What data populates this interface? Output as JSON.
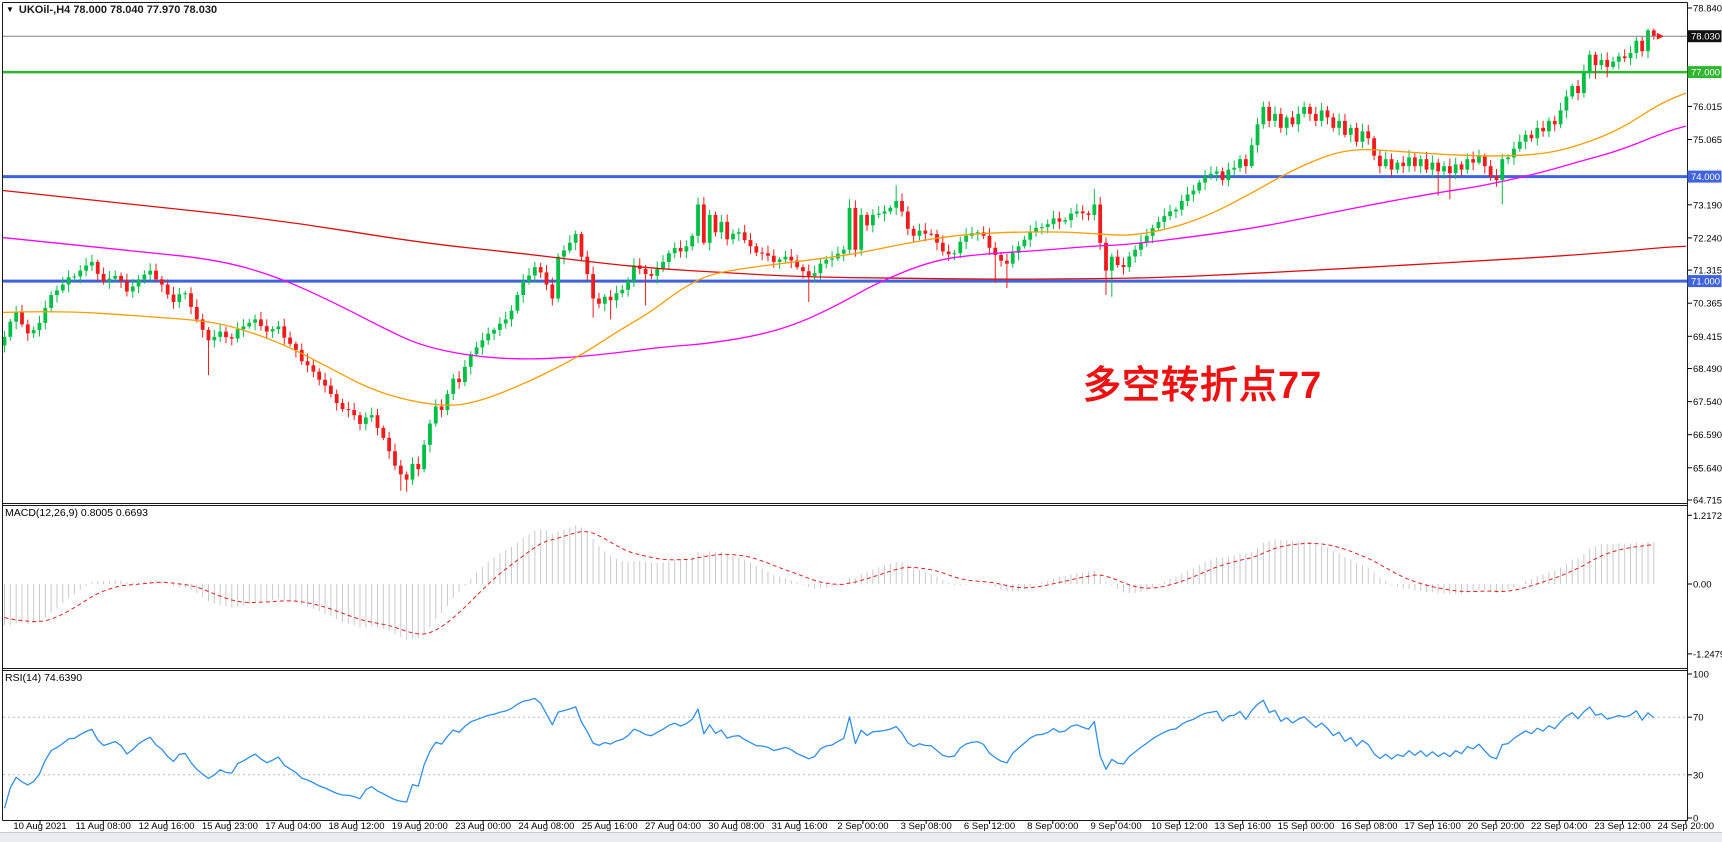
{
  "window": {
    "title": "UKOil-,H4  78.000 78.040 77.970 78.030",
    "dropdown_icon": "▼"
  },
  "annotation": {
    "text": "多空转折点77"
  },
  "panels": {
    "macd": {
      "label": "MACD(12,26,9) 0.8005 0.6693"
    },
    "rsi": {
      "label": "RSI(14) 74.6390"
    }
  },
  "colors": {
    "bull": "#00bf45",
    "bear": "#f21b1b",
    "ma_fast": "#ff9c00",
    "ma_mid": "#ff00ff",
    "ma_slow": "#dd0d0d",
    "macd_hist": "#c9c9c9",
    "macd_signal": "#e02020",
    "rsi_line": "#2f8fe8",
    "level_green": "#2fb52f",
    "level_blue": "#3f63dd",
    "current_line": "#808080",
    "box_black": "#111111",
    "border": "#1a1a1a",
    "dashed_level": "#bbbbbb",
    "bottom_strip": "#e9edf2"
  },
  "price_axis": {
    "labels": [
      {
        "t": "78.840",
        "p": 78.84
      },
      {
        "t": "76.015",
        "p": 76.015
      },
      {
        "t": "75.065",
        "p": 75.065
      },
      {
        "t": "73.190",
        "p": 73.19
      },
      {
        "t": "72.240",
        "p": 72.24
      },
      {
        "t": "71.315",
        "p": 71.315
      },
      {
        "t": "70.365",
        "p": 70.365
      },
      {
        "t": "69.415",
        "p": 69.415
      },
      {
        "t": "68.490",
        "p": 68.49
      },
      {
        "t": "67.540",
        "p": 67.54
      },
      {
        "t": "66.590",
        "p": 66.59
      },
      {
        "t": "65.640",
        "p": 65.64
      },
      {
        "t": "64.715",
        "p": 64.715
      }
    ],
    "boxes": [
      {
        "t": "78.030",
        "p": 78.03,
        "bg": "box_black"
      },
      {
        "t": "77.000",
        "p": 77.0,
        "bg": "level_green"
      },
      {
        "t": "74.000",
        "p": 74.0,
        "bg": "level_blue"
      },
      {
        "t": "71.000",
        "p": 71.0,
        "bg": "level_blue"
      }
    ]
  },
  "time_axis": {
    "labels": [
      "10 Aug 2021",
      "11 Aug 08:00",
      "12 Aug 16:00",
      "15 Aug 23:00",
      "17 Aug 04:00",
      "18 Aug 12:00",
      "19 Aug 20:00",
      "23 Aug 00:00",
      "24 Aug 08:00",
      "25 Aug 16:00",
      "27 Aug 04:00",
      "30 Aug 08:00",
      "31 Aug 16:00",
      "2 Sep 00:00",
      "3 Sep 08:00",
      "6 Sep 12:00",
      "8 Sep 00:00",
      "9 Sep 04:00",
      "10 Sep 12:00",
      "13 Sep 16:00",
      "15 Sep 00:00",
      "16 Sep 08:00",
      "17 Sep 16:00",
      "20 Sep 20:00",
      "22 Sep 04:00",
      "23 Sep 12:00",
      "24 Sep 20:00"
    ]
  },
  "chart_data": {
    "type": "candlestick",
    "symbol": "UKOil-",
    "timeframe": "H4",
    "current_ohlc": {
      "open": "78.000",
      "high": "78.040",
      "low": "77.970",
      "close": "78.030"
    },
    "y_axis": {
      "top_price": 78.84,
      "bottom_price": 64.715
    },
    "hlines": [
      {
        "price": 78.03,
        "color_key": "current_line",
        "w": 1
      },
      {
        "price": 77.0,
        "color_key": "level_green",
        "w": 2.5
      },
      {
        "price": 74.0,
        "color_key": "level_blue",
        "w": 3
      },
      {
        "price": 71.0,
        "color_key": "level_blue",
        "w": 3
      }
    ],
    "warmup_closes": [
      73.0,
      72.9,
      72.95,
      72.7,
      72.6,
      72.65,
      72.4,
      72.2,
      72.25,
      72.0,
      71.8,
      71.85,
      71.6,
      71.4,
      71.45,
      71.2,
      71.0,
      71.05,
      70.8,
      70.6,
      70.65,
      70.4,
      70.2,
      70.1,
      69.8
    ],
    "close_waypoints": [
      [
        0,
        69.4
      ],
      [
        2,
        70.1
      ],
      [
        4,
        69.5
      ],
      [
        6,
        69.8
      ],
      [
        8,
        70.6
      ],
      [
        10,
        70.9
      ],
      [
        13,
        71.3
      ],
      [
        15,
        71.55
      ],
      [
        17,
        71.0
      ],
      [
        19,
        71.15
      ],
      [
        21,
        70.7
      ],
      [
        23,
        71.05
      ],
      [
        25,
        71.3
      ],
      [
        27,
        70.9
      ],
      [
        29,
        70.4
      ],
      [
        31,
        70.65
      ],
      [
        33,
        69.9
      ],
      [
        35,
        69.3
      ],
      [
        37,
        69.55
      ],
      [
        39,
        69.35
      ],
      [
        41,
        69.7
      ],
      [
        43,
        69.9
      ],
      [
        45,
        69.55
      ],
      [
        47,
        69.7
      ],
      [
        49,
        69.2
      ],
      [
        51,
        68.7
      ],
      [
        53,
        68.4
      ],
      [
        55,
        68.0
      ],
      [
        57,
        67.5
      ],
      [
        59,
        67.3
      ],
      [
        61,
        66.9
      ],
      [
        63,
        67.15
      ],
      [
        65,
        66.5
      ],
      [
        67,
        65.7
      ],
      [
        68,
        65.45
      ],
      [
        69,
        65.3
      ],
      [
        70,
        65.75
      ],
      [
        71,
        65.6
      ],
      [
        72,
        66.3
      ],
      [
        74,
        67.4
      ],
      [
        75,
        67.3
      ],
      [
        77,
        68.2
      ],
      [
        78,
        68.1
      ],
      [
        80,
        68.9
      ],
      [
        82,
        69.3
      ],
      [
        84,
        69.6
      ],
      [
        86,
        69.9
      ],
      [
        88,
        70.6
      ],
      [
        89,
        71.0
      ],
      [
        91,
        71.4
      ],
      [
        93,
        70.9
      ],
      [
        94,
        70.5
      ],
      [
        95,
        71.7
      ],
      [
        97,
        72.1
      ],
      [
        98,
        72.35
      ],
      [
        99,
        71.7
      ],
      [
        100,
        71.2
      ],
      [
        101,
        70.5
      ],
      [
        102,
        70.35
      ],
      [
        103,
        70.55
      ],
      [
        104,
        70.45
      ],
      [
        105,
        70.65
      ],
      [
        106,
        70.75
      ],
      [
        107,
        71.0
      ],
      [
        108,
        71.45
      ],
      [
        109,
        71.35
      ],
      [
        110,
        71.2
      ],
      [
        111,
        71.15
      ],
      [
        112,
        71.35
      ],
      [
        113,
        71.55
      ],
      [
        114,
        71.8
      ],
      [
        115,
        71.95
      ],
      [
        116,
        71.85
      ],
      [
        117,
        72.0
      ],
      [
        118,
        72.3
      ],
      [
        119,
        73.2
      ],
      [
        120,
        72.1
      ],
      [
        121,
        72.9
      ],
      [
        122,
        72.4
      ],
      [
        123,
        72.7
      ],
      [
        124,
        72.2
      ],
      [
        126,
        72.4
      ],
      [
        128,
        72.0
      ],
      [
        130,
        71.8
      ],
      [
        132,
        71.55
      ],
      [
        134,
        71.7
      ],
      [
        136,
        71.4
      ],
      [
        138,
        71.15
      ],
      [
        140,
        71.5
      ],
      [
        142,
        71.65
      ],
      [
        144,
        71.9
      ],
      [
        145,
        73.1
      ],
      [
        146,
        71.9
      ],
      [
        147,
        72.9
      ],
      [
        148,
        72.6
      ],
      [
        149,
        72.9
      ],
      [
        151,
        73.0
      ],
      [
        153,
        73.3
      ],
      [
        155,
        72.5
      ],
      [
        156,
        72.3
      ],
      [
        157,
        72.45
      ],
      [
        159,
        72.35
      ],
      [
        161,
        71.85
      ],
      [
        163,
        71.8
      ],
      [
        165,
        72.3
      ],
      [
        167,
        72.4
      ],
      [
        168,
        72.3
      ],
      [
        170,
        71.75
      ],
      [
        172,
        71.5
      ],
      [
        174,
        72.0
      ],
      [
        176,
        72.4
      ],
      [
        178,
        72.55
      ],
      [
        180,
        72.8
      ],
      [
        182,
        72.75
      ],
      [
        184,
        73.0
      ],
      [
        186,
        72.9
      ],
      [
        187,
        73.2
      ],
      [
        188,
        72.1
      ],
      [
        189,
        71.3
      ],
      [
        190,
        71.7
      ],
      [
        192,
        71.4
      ],
      [
        194,
        71.9
      ],
      [
        196,
        72.3
      ],
      [
        198,
        72.7
      ],
      [
        200,
        73.0
      ],
      [
        202,
        73.3
      ],
      [
        204,
        73.6
      ],
      [
        206,
        74.0
      ],
      [
        208,
        74.15
      ],
      [
        209,
        73.9
      ],
      [
        210,
        74.2
      ],
      [
        212,
        74.5
      ],
      [
        213,
        74.3
      ],
      [
        214,
        74.9
      ],
      [
        215,
        75.5
      ],
      [
        216,
        76.0
      ],
      [
        217,
        75.6
      ],
      [
        218,
        75.8
      ],
      [
        219,
        75.4
      ],
      [
        220,
        75.7
      ],
      [
        221,
        75.5
      ],
      [
        222,
        75.8
      ],
      [
        223,
        76.0
      ],
      [
        224,
        75.8
      ],
      [
        225,
        75.6
      ],
      [
        226,
        75.9
      ],
      [
        227,
        75.7
      ],
      [
        228,
        75.4
      ],
      [
        229,
        75.6
      ],
      [
        230,
        75.2
      ],
      [
        231,
        75.4
      ],
      [
        232,
        75.0
      ],
      [
        233,
        75.3
      ],
      [
        234,
        75.1
      ],
      [
        235,
        74.6
      ],
      [
        236,
        74.3
      ],
      [
        237,
        74.5
      ],
      [
        238,
        74.2
      ],
      [
        239,
        74.4
      ],
      [
        240,
        74.3
      ],
      [
        241,
        74.55
      ],
      [
        242,
        74.3
      ],
      [
        243,
        74.5
      ],
      [
        244,
        74.2
      ],
      [
        245,
        74.4
      ],
      [
        246,
        74.15
      ],
      [
        247,
        74.3
      ],
      [
        248,
        74.1
      ],
      [
        249,
        74.35
      ],
      [
        250,
        74.2
      ],
      [
        251,
        74.5
      ],
      [
        252,
        74.4
      ],
      [
        253,
        74.6
      ],
      [
        254,
        74.3
      ],
      [
        255,
        74.0
      ],
      [
        256,
        73.9
      ],
      [
        257,
        74.5
      ],
      [
        258,
        74.55
      ],
      [
        259,
        74.8
      ],
      [
        260,
        75.0
      ],
      [
        261,
        75.2
      ],
      [
        262,
        75.1
      ],
      [
        263,
        75.4
      ],
      [
        264,
        75.3
      ],
      [
        265,
        75.6
      ],
      [
        266,
        75.5
      ],
      [
        267,
        75.9
      ],
      [
        268,
        76.3
      ],
      [
        269,
        76.6
      ],
      [
        270,
        76.4
      ],
      [
        271,
        77.0
      ],
      [
        272,
        77.5
      ],
      [
        273,
        77.2
      ],
      [
        274,
        77.35
      ],
      [
        275,
        77.15
      ],
      [
        276,
        77.3
      ],
      [
        277,
        77.45
      ],
      [
        278,
        77.4
      ],
      [
        279,
        77.55
      ],
      [
        280,
        77.9
      ],
      [
        281,
        77.6
      ],
      [
        282,
        78.2
      ],
      [
        283,
        78.03
      ]
    ],
    "wick_low": {
      "35": 68.3,
      "68": 64.98,
      "69": 64.95,
      "101": 69.95,
      "104": 69.9,
      "110": 70.3,
      "138": 70.4,
      "170": 70.95,
      "172": 70.8,
      "189": 70.6,
      "190": 70.55,
      "246": 73.45,
      "248": 73.35,
      "257": 73.2,
      "273": 76.8,
      "275": 76.85
    },
    "wick_high": {
      "15": 71.75,
      "91": 71.55,
      "98": 72.45,
      "119": 73.4,
      "145": 73.35,
      "153": 73.75,
      "187": 73.65,
      "216": 76.15,
      "272": 77.62,
      "282": 78.25,
      "283": 78.25
    },
    "ma_lines": [
      {
        "name": "ma-slow",
        "color_key": "ma_slow",
        "points": [
          [
            3,
            73.6
          ],
          [
            140,
            73.18
          ],
          [
            280,
            72.75
          ],
          [
            420,
            72.1
          ],
          [
            520,
            71.8
          ],
          [
            600,
            71.52
          ],
          [
            660,
            71.35
          ],
          [
            720,
            71.25
          ],
          [
            800,
            71.12
          ],
          [
            900,
            71.08
          ],
          [
            1000,
            71.05
          ],
          [
            1100,
            71.07
          ],
          [
            1160,
            71.1
          ],
          [
            1240,
            71.2
          ],
          [
            1320,
            71.32
          ],
          [
            1400,
            71.45
          ],
          [
            1480,
            71.58
          ],
          [
            1560,
            71.72
          ],
          [
            1620,
            71.85
          ],
          [
            1665,
            71.97
          ],
          [
            1686,
            72.0
          ]
        ]
      },
      {
        "name": "ma-mid",
        "color_key": "ma_mid",
        "points": [
          [
            3,
            72.25
          ],
          [
            140,
            71.85
          ],
          [
            220,
            71.6
          ],
          [
            280,
            71.1
          ],
          [
            340,
            70.3
          ],
          [
            380,
            69.7
          ],
          [
            420,
            69.15
          ],
          [
            470,
            68.85
          ],
          [
            520,
            68.75
          ],
          [
            570,
            68.8
          ],
          [
            620,
            68.95
          ],
          [
            660,
            69.1
          ],
          [
            707,
            69.2
          ],
          [
            760,
            69.45
          ],
          [
            800,
            69.8
          ],
          [
            840,
            70.35
          ],
          [
            877,
            70.95
          ],
          [
            933,
            71.6
          ],
          [
            983,
            71.78
          ],
          [
            1040,
            71.88
          ],
          [
            1090,
            72.0
          ],
          [
            1130,
            72.05
          ],
          [
            1200,
            72.3
          ],
          [
            1260,
            72.55
          ],
          [
            1320,
            72.9
          ],
          [
            1380,
            73.24
          ],
          [
            1440,
            73.55
          ],
          [
            1480,
            73.72
          ],
          [
            1540,
            74.1
          ],
          [
            1580,
            74.44
          ],
          [
            1620,
            74.75
          ],
          [
            1667,
            75.3
          ],
          [
            1686,
            75.45
          ]
        ]
      },
      {
        "name": "ma-fast",
        "color_key": "ma_fast",
        "points": [
          [
            3,
            70.1
          ],
          [
            60,
            70.15
          ],
          [
            140,
            70.0
          ],
          [
            210,
            69.85
          ],
          [
            250,
            69.55
          ],
          [
            290,
            69.1
          ],
          [
            330,
            68.5
          ],
          [
            370,
            67.9
          ],
          [
            410,
            67.55
          ],
          [
            450,
            67.4
          ],
          [
            480,
            67.55
          ],
          [
            520,
            68.0
          ],
          [
            560,
            68.55
          ],
          [
            588,
            69.0
          ],
          [
            620,
            69.6
          ],
          [
            650,
            70.1
          ],
          [
            680,
            70.75
          ],
          [
            707,
            71.17
          ],
          [
            740,
            71.35
          ],
          [
            780,
            71.5
          ],
          [
            850,
            71.75
          ],
          [
            900,
            72.05
          ],
          [
            950,
            72.3
          ],
          [
            1000,
            72.4
          ],
          [
            1060,
            72.42
          ],
          [
            1100,
            72.35
          ],
          [
            1130,
            72.3
          ],
          [
            1170,
            72.5
          ],
          [
            1210,
            72.9
          ],
          [
            1250,
            73.5
          ],
          [
            1290,
            74.15
          ],
          [
            1330,
            74.65
          ],
          [
            1360,
            74.8
          ],
          [
            1400,
            74.72
          ],
          [
            1450,
            74.62
          ],
          [
            1500,
            74.58
          ],
          [
            1545,
            74.65
          ],
          [
            1580,
            74.9
          ],
          [
            1620,
            75.35
          ],
          [
            1660,
            76.1
          ],
          [
            1686,
            76.4
          ]
        ]
      }
    ],
    "macd": {
      "fast": 12,
      "slow": 26,
      "signal": 9,
      "values": [
        0.8005,
        0.6693
      ],
      "axis": [
        {
          "t": "1.2172",
          "v": 1.2172
        },
        {
          "t": "0.00",
          "v": 0
        },
        {
          "t": "-1.2479",
          "v": -1.2479
        }
      ]
    },
    "rsi": {
      "period": 14,
      "value": 74.639,
      "axis": [
        {
          "t": "100",
          "v": 100
        },
        {
          "t": "70",
          "v": 70
        },
        {
          "t": "30",
          "v": 30
        },
        {
          "t": "0",
          "v": 0
        }
      ],
      "levels": [
        70,
        30
      ]
    }
  }
}
